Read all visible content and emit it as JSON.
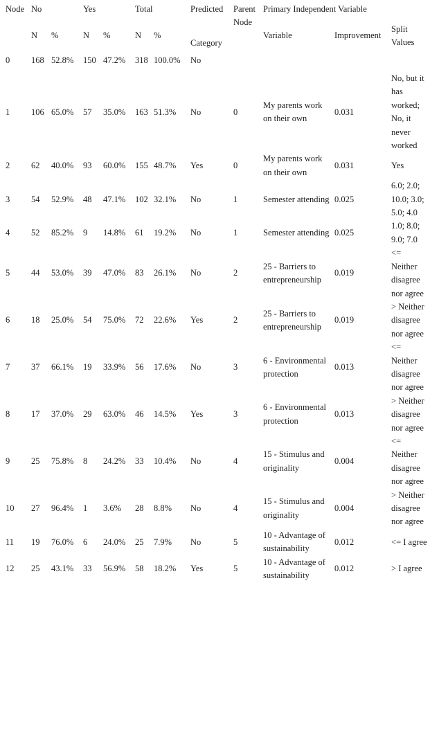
{
  "header": {
    "node": "Node",
    "no": "No",
    "yes": "Yes",
    "total": "Total",
    "n": "N",
    "pct": "%",
    "predicted": "Predicted",
    "category": "Category",
    "parent_node": "Parent Node",
    "primary_independent_variable": "Primary Independent Variable",
    "variable": "Variable",
    "improvement": "Improvement",
    "split_values": "Split Values"
  },
  "rows": [
    {
      "node": "0",
      "no_n": "168",
      "no_pct": "52.8%",
      "yes_n": "150",
      "yes_pct": "47.2%",
      "total_n": "318",
      "total_pct": "100.0%",
      "predicted": "No",
      "parent": "",
      "variable": "",
      "improvement": "",
      "split": ""
    },
    {
      "node": "1",
      "no_n": "106",
      "no_pct": "65.0%",
      "yes_n": "57",
      "yes_pct": "35.0%",
      "total_n": "163",
      "total_pct": "51.3%",
      "predicted": "No",
      "parent": "0",
      "variable": "My parents work on their own",
      "improvement": "0.031",
      "split": "No, but it has worked; No, it never worked"
    },
    {
      "node": "2",
      "no_n": "62",
      "no_pct": "40.0%",
      "yes_n": "93",
      "yes_pct": "60.0%",
      "total_n": "155",
      "total_pct": "48.7%",
      "predicted": "Yes",
      "parent": "0",
      "variable": "My parents work on their own",
      "improvement": "0.031",
      "split": "Yes"
    },
    {
      "node": "3",
      "no_n": "54",
      "no_pct": "52.9%",
      "yes_n": "48",
      "yes_pct": "47.1%",
      "total_n": "102",
      "total_pct": "32.1%",
      "predicted": "No",
      "parent": "1",
      "variable": "Semester attending",
      "improvement": "0.025",
      "split": "6.0; 2.0; 10.0; 3.0; 5.0; 4.0"
    },
    {
      "node": "4",
      "no_n": "52",
      "no_pct": "85.2%",
      "yes_n": "9",
      "yes_pct": "14.8%",
      "total_n": "61",
      "total_pct": "19.2%",
      "predicted": "No",
      "parent": "1",
      "variable": "Semester attending",
      "improvement": "0.025",
      "split": "1.0; 8.0; 9.0; 7.0"
    },
    {
      "node": "5",
      "no_n": "44",
      "no_pct": "53.0%",
      "yes_n": "39",
      "yes_pct": "47.0%",
      "total_n": "83",
      "total_pct": "26.1%",
      "predicted": "No",
      "parent": "2",
      "variable": "25 - Barriers to entrepreneurship",
      "improvement": "0.019",
      "split": "<= Neither disagree nor agree"
    },
    {
      "node": "6",
      "no_n": "18",
      "no_pct": "25.0%",
      "yes_n": "54",
      "yes_pct": "75.0%",
      "total_n": "72",
      "total_pct": "22.6%",
      "predicted": "Yes",
      "parent": "2",
      "variable": "25 - Barriers to entrepreneurship",
      "improvement": "0.019",
      "split": "> Neither disagree nor agree"
    },
    {
      "node": "7",
      "no_n": "37",
      "no_pct": "66.1%",
      "yes_n": "19",
      "yes_pct": "33.9%",
      "total_n": "56",
      "total_pct": "17.6%",
      "predicted": "No",
      "parent": "3",
      "variable": "6 - Environmental protection",
      "improvement": "0.013",
      "split": "<= Neither disagree nor agree"
    },
    {
      "node": "8",
      "no_n": "17",
      "no_pct": "37.0%",
      "yes_n": "29",
      "yes_pct": "63.0%",
      "total_n": "46",
      "total_pct": "14.5%",
      "predicted": "Yes",
      "parent": "3",
      "variable": "6 - Environmental protection",
      "improvement": "0.013",
      "split": "> Neither disagree nor agree"
    },
    {
      "node": "9",
      "no_n": "25",
      "no_pct": "75.8%",
      "yes_n": "8",
      "yes_pct": "24.2%",
      "total_n": "33",
      "total_pct": "10.4%",
      "predicted": "No",
      "parent": "4",
      "variable": "15 - Stimulus and originality",
      "improvement": "0.004",
      "split": "<= Neither disagree nor agree"
    },
    {
      "node": "10",
      "no_n": "27",
      "no_pct": "96.4%",
      "yes_n": "1",
      "yes_pct": "3.6%",
      "total_n": "28",
      "total_pct": "8.8%",
      "predicted": "No",
      "parent": "4",
      "variable": "15 - Stimulus and originality",
      "improvement": "0.004",
      "split": "> Neither disagree nor agree"
    },
    {
      "node": "11",
      "no_n": "19",
      "no_pct": "76.0%",
      "yes_n": "6",
      "yes_pct": "24.0%",
      "total_n": "25",
      "total_pct": "7.9%",
      "predicted": "No",
      "parent": "5",
      "variable": "10 - Advantage of sustainability",
      "improvement": "0.012",
      "split": "<= I agree"
    },
    {
      "node": "12",
      "no_n": "25",
      "no_pct": "43.1%",
      "yes_n": "33",
      "yes_pct": "56.9%",
      "total_n": "58",
      "total_pct": "18.2%",
      "predicted": "Yes",
      "parent": "5",
      "variable": "10 - Advantage of sustainability",
      "improvement": "0.012",
      "split": "> I agree"
    }
  ]
}
